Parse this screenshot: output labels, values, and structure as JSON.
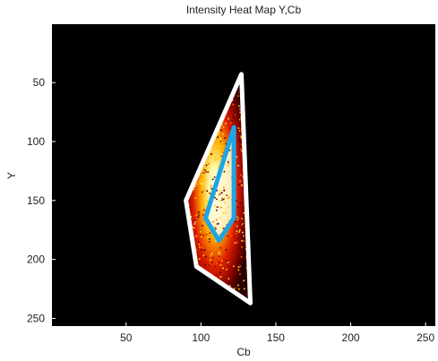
{
  "chart_data": {
    "type": "heatmap",
    "title": "Intensity Heat Map Y,Cb",
    "xlabel": "Cb",
    "ylabel": "Y",
    "xlim": [
      0.5,
      256.5
    ],
    "ylim": [
      0.5,
      256.5
    ],
    "y_axis_reversed": true,
    "background_color": "#000000",
    "x_ticks": [
      50,
      100,
      150,
      200,
      250
    ],
    "y_ticks": [
      50,
      100,
      150,
      200,
      250
    ],
    "colormap": "hot",
    "outer_boundary": {
      "color": "#ffffff",
      "points": [
        [
          127,
          43
        ],
        [
          90,
          150
        ],
        [
          97,
          206
        ],
        [
          133,
          237
        ],
        [
          127,
          43
        ]
      ]
    },
    "inner_boundary": {
      "color": "#1ea5e6",
      "points": [
        [
          122,
          88
        ],
        [
          103,
          165
        ],
        [
          112,
          184
        ],
        [
          122,
          165
        ],
        [
          122,
          88
        ]
      ]
    }
  }
}
